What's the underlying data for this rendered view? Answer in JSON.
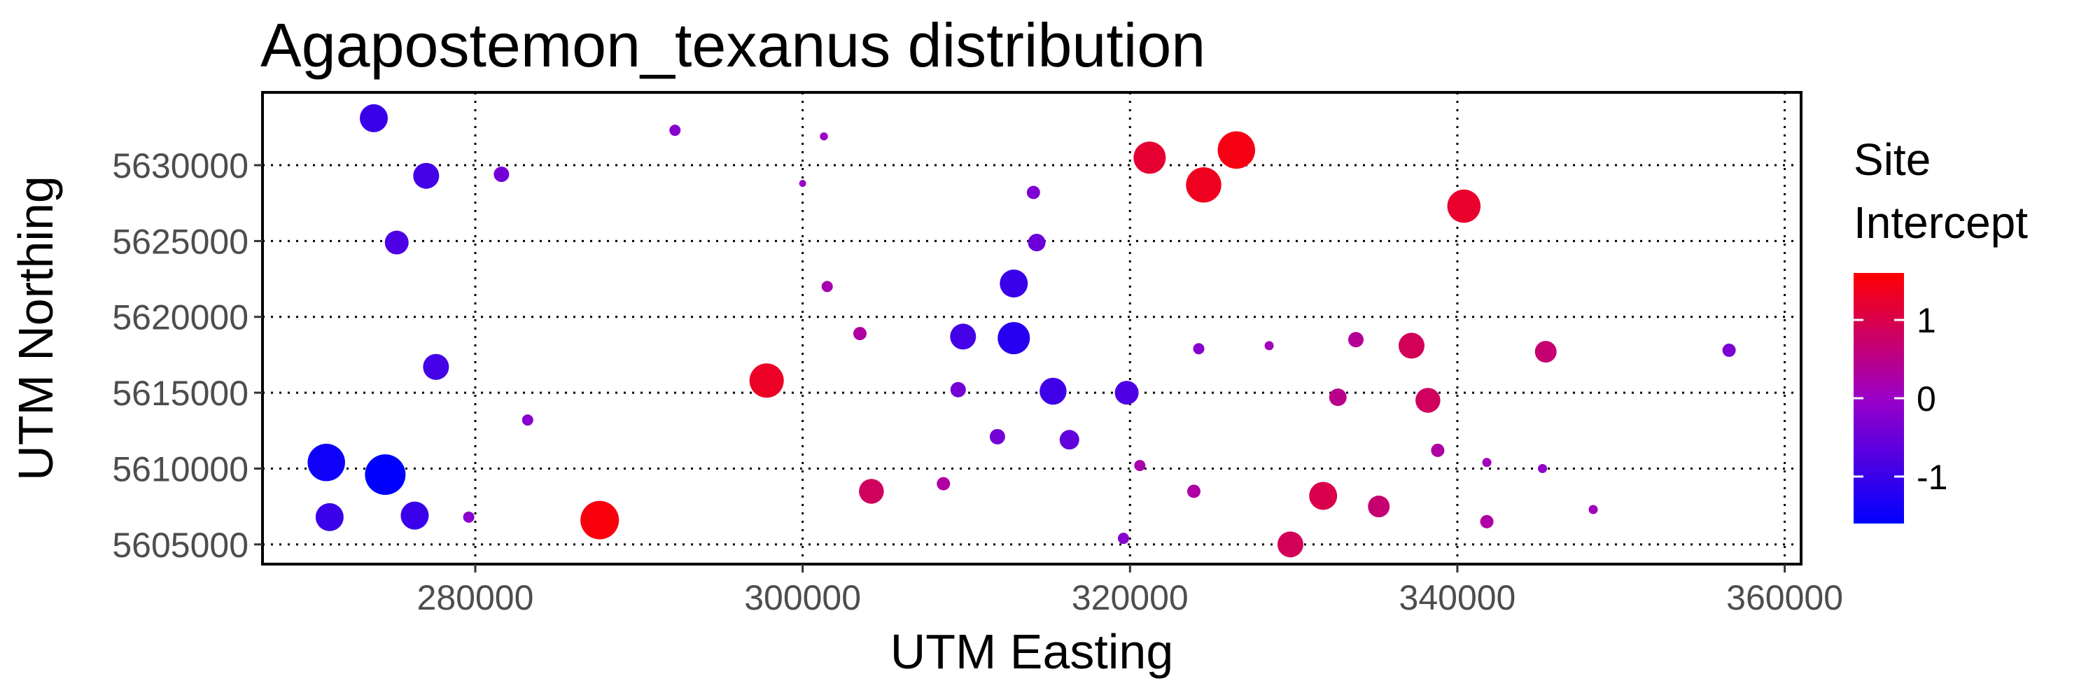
{
  "chart_data": {
    "type": "scatter",
    "title": "Agapostemon_texanus distribution",
    "xlabel": "UTM Easting",
    "ylabel": "UTM Northing",
    "xlim": [
      267000,
      361000
    ],
    "ylim": [
      5603700,
      5634800
    ],
    "x_ticks": [
      280000,
      300000,
      320000,
      340000,
      360000
    ],
    "y_ticks": [
      5605000,
      5610000,
      5615000,
      5620000,
      5625000,
      5630000
    ],
    "x_tick_labels": [
      "280000",
      "300000",
      "320000",
      "340000",
      "360000"
    ],
    "y_tick_labels": [
      "5605000",
      "5610000",
      "5615000",
      "5620000",
      "5625000",
      "5630000"
    ],
    "grid": "dotted major",
    "legend": {
      "title_lines": [
        "Site",
        "Intercept"
      ],
      "type": "colorbar",
      "position": "right",
      "range": [
        -1.6,
        1.6
      ],
      "ticks": [
        1,
        0,
        -1
      ],
      "tick_labels": [
        "1",
        "0",
        "-1"
      ],
      "color_low": "#0000ff",
      "color_high": "#ff0000"
    },
    "size_note": "point size increases with absolute intercept",
    "points": [
      {
        "x": 273800,
        "y": 5633100,
        "v": -1.0
      },
      {
        "x": 292200,
        "y": 5632300,
        "v": -0.2
      },
      {
        "x": 301300,
        "y": 5631900,
        "v": 0.05
      },
      {
        "x": 277000,
        "y": 5629300,
        "v": -0.9
      },
      {
        "x": 281600,
        "y": 5629400,
        "v": -0.4
      },
      {
        "x": 300000,
        "y": 5628800,
        "v": 0.0
      },
      {
        "x": 321200,
        "y": 5630500,
        "v": 1.2
      },
      {
        "x": 326500,
        "y": 5631000,
        "v": 1.45
      },
      {
        "x": 324500,
        "y": 5628700,
        "v": 1.35
      },
      {
        "x": 314100,
        "y": 5628200,
        "v": -0.3
      },
      {
        "x": 340400,
        "y": 5627300,
        "v": 1.25
      },
      {
        "x": 275200,
        "y": 5624900,
        "v": -0.8
      },
      {
        "x": 314300,
        "y": 5624900,
        "v": -0.5
      },
      {
        "x": 312900,
        "y": 5622200,
        "v": -1.0
      },
      {
        "x": 301500,
        "y": 5622000,
        "v": 0.2
      },
      {
        "x": 303500,
        "y": 5618900,
        "v": 0.3
      },
      {
        "x": 309800,
        "y": 5618700,
        "v": -0.9
      },
      {
        "x": 312900,
        "y": 5618600,
        "v": -1.2
      },
      {
        "x": 324200,
        "y": 5617900,
        "v": -0.2
      },
      {
        "x": 328500,
        "y": 5618100,
        "v": 0.1
      },
      {
        "x": 333800,
        "y": 5618500,
        "v": 0.4
      },
      {
        "x": 337200,
        "y": 5618100,
        "v": 0.9
      },
      {
        "x": 345400,
        "y": 5617700,
        "v": 0.7
      },
      {
        "x": 356600,
        "y": 5617800,
        "v": -0.3
      },
      {
        "x": 277600,
        "y": 5616700,
        "v": -0.9
      },
      {
        "x": 297800,
        "y": 5615800,
        "v": 1.3
      },
      {
        "x": 309500,
        "y": 5615200,
        "v": -0.4
      },
      {
        "x": 315300,
        "y": 5615100,
        "v": -0.95
      },
      {
        "x": 319800,
        "y": 5615000,
        "v": -0.8
      },
      {
        "x": 332700,
        "y": 5614700,
        "v": 0.5
      },
      {
        "x": 338200,
        "y": 5614500,
        "v": 0.85
      },
      {
        "x": 283200,
        "y": 5613200,
        "v": -0.2
      },
      {
        "x": 311900,
        "y": 5612100,
        "v": -0.4
      },
      {
        "x": 316300,
        "y": 5611900,
        "v": -0.6
      },
      {
        "x": 338800,
        "y": 5611200,
        "v": 0.3
      },
      {
        "x": 341800,
        "y": 5610400,
        "v": 0.1
      },
      {
        "x": 345200,
        "y": 5610000,
        "v": -0.1
      },
      {
        "x": 270900,
        "y": 5610400,
        "v": -1.45
      },
      {
        "x": 274500,
        "y": 5609600,
        "v": -1.6
      },
      {
        "x": 320600,
        "y": 5610200,
        "v": 0.2
      },
      {
        "x": 308600,
        "y": 5609000,
        "v": 0.3
      },
      {
        "x": 304200,
        "y": 5608500,
        "v": 0.85
      },
      {
        "x": 323900,
        "y": 5608500,
        "v": 0.3
      },
      {
        "x": 331800,
        "y": 5608200,
        "v": 1.0
      },
      {
        "x": 335200,
        "y": 5607500,
        "v": 0.7
      },
      {
        "x": 348300,
        "y": 5607300,
        "v": 0.1
      },
      {
        "x": 271100,
        "y": 5606800,
        "v": -1.0
      },
      {
        "x": 276300,
        "y": 5606900,
        "v": -1.0
      },
      {
        "x": 279600,
        "y": 5606800,
        "v": -0.2
      },
      {
        "x": 287600,
        "y": 5606600,
        "v": 1.5
      },
      {
        "x": 341800,
        "y": 5606500,
        "v": 0.3
      },
      {
        "x": 319600,
        "y": 5605400,
        "v": -0.2
      },
      {
        "x": 329800,
        "y": 5605000,
        "v": 0.9
      }
    ]
  }
}
